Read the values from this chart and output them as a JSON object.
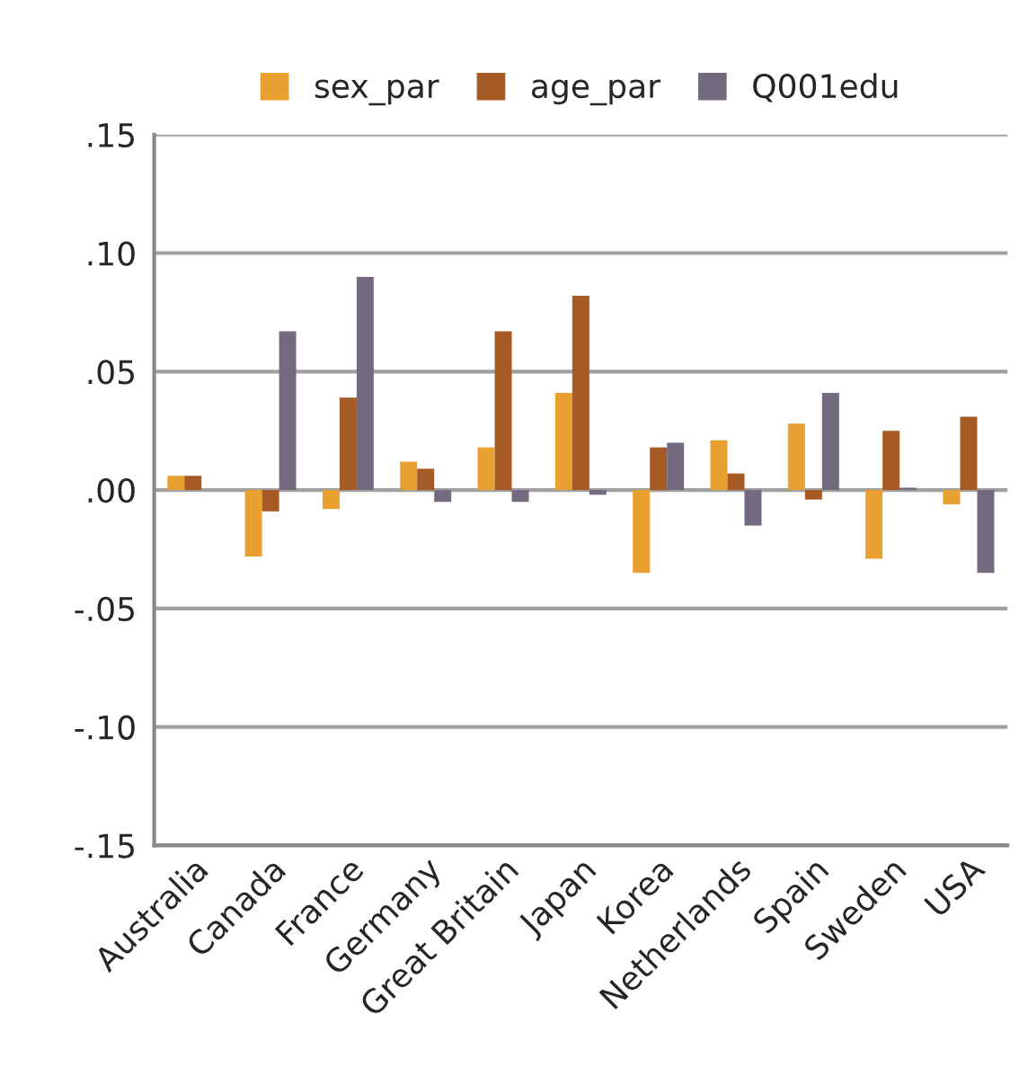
{
  "chart_data": {
    "type": "bar",
    "categories": [
      "Australia",
      "Canada",
      "France",
      "Germany",
      "Great Britain",
      "Japan",
      "Korea",
      "Netherlands",
      "Spain",
      "Sweden",
      "USA"
    ],
    "series": [
      {
        "name": "sex_par",
        "color": "#e8a030",
        "values": [
          0.006,
          -0.028,
          -0.008,
          0.012,
          0.018,
          0.041,
          -0.035,
          0.021,
          0.028,
          -0.029,
          -0.006
        ]
      },
      {
        "name": "age_par",
        "color": "#a65a25",
        "values": [
          0.006,
          -0.009,
          0.039,
          0.009,
          0.067,
          0.082,
          0.018,
          0.007,
          -0.004,
          0.025,
          0.031
        ]
      },
      {
        "name": "Q001edu",
        "color": "#736a80",
        "values": [
          null,
          0.067,
          0.09,
          -0.005,
          -0.005,
          -0.002,
          0.02,
          -0.015,
          0.041,
          0.001,
          -0.035
        ]
      }
    ],
    "ylim": [
      -0.15,
      0.15
    ],
    "yticks": [
      {
        "value": -0.15,
        "label": "-.15"
      },
      {
        "value": -0.1,
        "label": "-.10"
      },
      {
        "value": -0.05,
        "label": "-.05"
      },
      {
        "value": 0.0,
        "label": ".00"
      },
      {
        "value": 0.05,
        "label": ".05"
      },
      {
        "value": 0.1,
        "label": ".10"
      },
      {
        "value": 0.15,
        "label": ".15"
      }
    ],
    "grid": "y",
    "legend": "top"
  }
}
